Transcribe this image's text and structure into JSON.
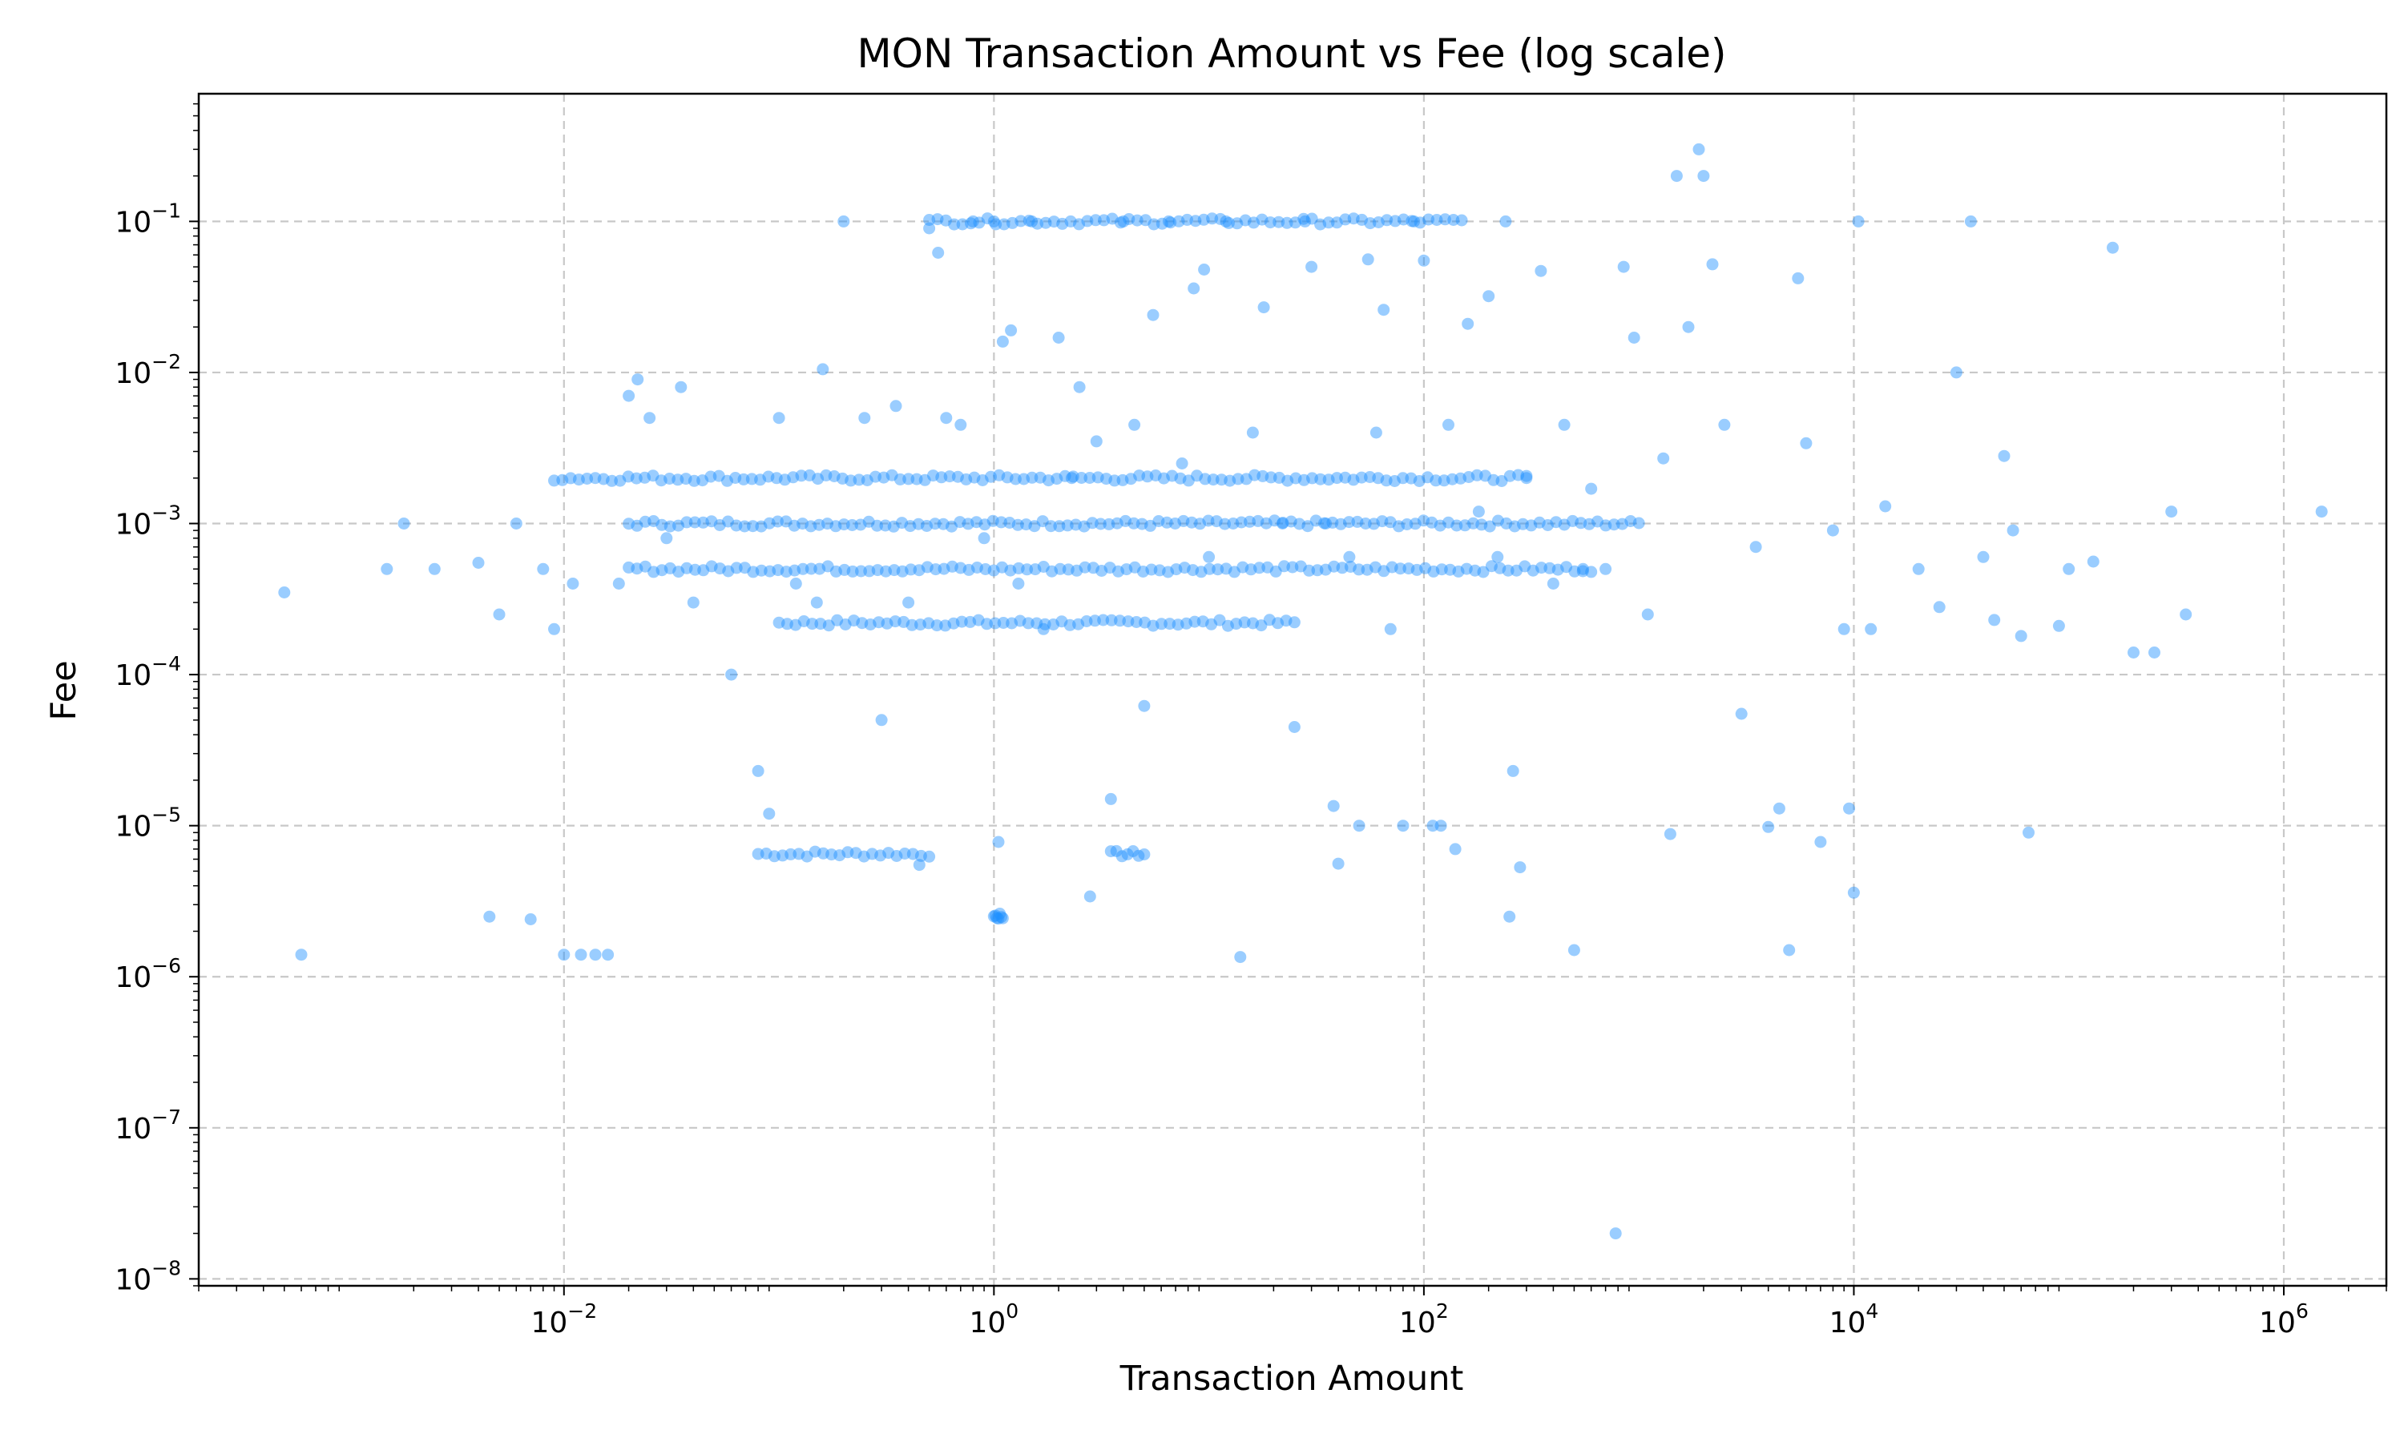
{
  "chart_data": {
    "type": "scatter",
    "title": "MON Transaction Amount vs Fee (log scale)",
    "xlabel": "Transaction Amount",
    "ylabel": "Fee",
    "x_scale": "log",
    "y_scale": "log",
    "xlim": [
      0.0002,
      3000000
    ],
    "ylim": [
      9e-09,
      0.7
    ],
    "grid": true,
    "grid_style": "dashed",
    "legend": "none",
    "colors": {
      "marker": "#1e90ff",
      "grid": "#c8c8c8",
      "axes": "#000000"
    },
    "x_ticks": [
      {
        "base": "10",
        "exp": "−2",
        "value": 0.01
      },
      {
        "base": "10",
        "exp": "0",
        "value": 1
      },
      {
        "base": "10",
        "exp": "2",
        "value": 100
      },
      {
        "base": "10",
        "exp": "4",
        "value": 10000
      },
      {
        "base": "10",
        "exp": "6",
        "value": 1000000
      }
    ],
    "y_ticks": [
      {
        "base": "10",
        "exp": "−8",
        "value": 1e-08
      },
      {
        "base": "10",
        "exp": "−7",
        "value": 1e-07
      },
      {
        "base": "10",
        "exp": "−6",
        "value": 1e-06
      },
      {
        "base": "10",
        "exp": "−5",
        "value": 1e-05
      },
      {
        "base": "10",
        "exp": "−4",
        "value": 0.0001
      },
      {
        "base": "10",
        "exp": "−3",
        "value": 0.001
      },
      {
        "base": "10",
        "exp": "−2",
        "value": 0.01
      },
      {
        "base": "10",
        "exp": "−1",
        "value": 0.1
      }
    ],
    "points": [
      [
        0.0005,
        0.00035
      ],
      [
        0.0006,
        1.4e-06
      ],
      [
        0.0015,
        0.0005
      ],
      [
        0.0018,
        0.001
      ],
      [
        0.0025,
        0.0005
      ],
      [
        0.004,
        0.00055
      ],
      [
        0.0045,
        2.5e-06
      ],
      [
        0.005,
        0.00025
      ],
      [
        0.006,
        0.001
      ],
      [
        0.007,
        2.4e-06
      ],
      [
        0.008,
        0.0005
      ],
      [
        0.009,
        0.0002
      ],
      [
        0.01,
        1.4e-06
      ],
      [
        0.011,
        0.0004
      ],
      [
        0.012,
        1.4e-06
      ],
      [
        0.014,
        1.4e-06
      ],
      [
        0.016,
        1.4e-06
      ],
      [
        0.018,
        0.0004
      ],
      [
        0.02,
        0.007
      ],
      [
        0.022,
        0.009
      ],
      [
        0.025,
        0.005
      ],
      [
        0.03,
        0.0008
      ],
      [
        0.035,
        0.008
      ],
      [
        0.04,
        0.0003
      ],
      [
        0.06,
        0.0001
      ],
      [
        0.08,
        2.3e-05
      ],
      [
        0.09,
        1.2e-05
      ],
      [
        0.1,
        0.005
      ],
      [
        0.12,
        0.0004
      ],
      [
        0.15,
        0.0003
      ],
      [
        0.16,
        0.0105
      ],
      [
        0.2,
        0.1
      ],
      [
        0.25,
        0.005
      ],
      [
        0.3,
        5e-05
      ],
      [
        0.35,
        0.006
      ],
      [
        0.4,
        0.0003
      ],
      [
        0.45,
        5.5e-06
      ],
      [
        0.5,
        0.09
      ],
      [
        0.55,
        0.062
      ],
      [
        0.6,
        0.005
      ],
      [
        0.7,
        0.0045
      ],
      [
        0.8,
        0.1
      ],
      [
        0.9,
        0.0008
      ],
      [
        1.0,
        0.1
      ],
      [
        1.05,
        7.8e-06
      ],
      [
        1.1,
        0.016
      ],
      [
        1.2,
        0.019
      ],
      [
        1.3,
        0.0004
      ],
      [
        1.5,
        0.1
      ],
      [
        1.7,
        0.0002
      ],
      [
        2.0,
        0.017
      ],
      [
        2.3,
        0.002
      ],
      [
        2.5,
        0.008
      ],
      [
        2.8,
        3.4e-06
      ],
      [
        3.0,
        0.0035
      ],
      [
        3.5,
        1.5e-05
      ],
      [
        4.0,
        0.1
      ],
      [
        4.5,
        0.0045
      ],
      [
        5.0,
        6.2e-05
      ],
      [
        5.5,
        0.024
      ],
      [
        6.5,
        0.1
      ],
      [
        7.5,
        0.0025
      ],
      [
        8.5,
        0.036
      ],
      [
        9.5,
        0.048
      ],
      [
        10.0,
        0.0006
      ],
      [
        12.0,
        0.1
      ],
      [
        14.0,
        1.35e-06
      ],
      [
        16.0,
        0.004
      ],
      [
        18.0,
        0.027
      ],
      [
        22.0,
        0.001
      ],
      [
        25.0,
        4.5e-05
      ],
      [
        28.0,
        0.1
      ],
      [
        30.0,
        0.05
      ],
      [
        35.0,
        0.001
      ],
      [
        38.0,
        1.35e-05
      ],
      [
        40.0,
        5.6e-06
      ],
      [
        45.0,
        0.0006
      ],
      [
        50.0,
        1e-05
      ],
      [
        55.0,
        0.056
      ],
      [
        60.0,
        0.004
      ],
      [
        65.0,
        0.026
      ],
      [
        70.0,
        0.0002
      ],
      [
        80.0,
        1e-05
      ],
      [
        90.0,
        0.1
      ],
      [
        100.0,
        0.055
      ],
      [
        110.0,
        1e-05
      ],
      [
        120.0,
        1e-05
      ],
      [
        130.0,
        0.0045
      ],
      [
        140.0,
        7e-06
      ],
      [
        160.0,
        0.021
      ],
      [
        180.0,
        0.0012
      ],
      [
        200.0,
        0.032
      ],
      [
        220.0,
        0.0006
      ],
      [
        240.0,
        0.1
      ],
      [
        250.0,
        2.5e-06
      ],
      [
        260.0,
        2.3e-05
      ],
      [
        280.0,
        5.3e-06
      ],
      [
        300.0,
        0.002
      ],
      [
        350.0,
        0.047
      ],
      [
        400.0,
        0.0004
      ],
      [
        450.0,
        0.0045
      ],
      [
        500.0,
        1.5e-06
      ],
      [
        550.0,
        0.0005
      ],
      [
        600.0,
        0.0017
      ],
      [
        700.0,
        0.0005
      ],
      [
        780.0,
        2e-08
      ],
      [
        850.0,
        0.05
      ],
      [
        950.0,
        0.017
      ],
      [
        1100.0,
        0.00025
      ],
      [
        1300.0,
        0.0027
      ],
      [
        1400.0,
        8.8e-06
      ],
      [
        1500.0,
        0.2
      ],
      [
        1700.0,
        0.02
      ],
      [
        1900.0,
        0.3
      ],
      [
        2000.0,
        0.2
      ],
      [
        2200.0,
        0.052
      ],
      [
        2500.0,
        0.0045
      ],
      [
        3000.0,
        5.5e-05
      ],
      [
        3500.0,
        0.0007
      ],
      [
        4000.0,
        9.8e-06
      ],
      [
        4500.0,
        1.3e-05
      ],
      [
        5000.0,
        1.5e-06
      ],
      [
        5500.0,
        0.042
      ],
      [
        6000.0,
        0.0034
      ],
      [
        7000.0,
        7.8e-06
      ],
      [
        8000.0,
        0.0009
      ],
      [
        9000.0,
        0.0002
      ],
      [
        9500.0,
        1.3e-05
      ],
      [
        10000.0,
        3.6e-06
      ],
      [
        10500.0,
        0.1
      ],
      [
        12000.0,
        0.0002
      ],
      [
        14000.0,
        0.0013
      ],
      [
        20000.0,
        0.0005
      ],
      [
        25000.0,
        0.00028
      ],
      [
        30000.0,
        0.01
      ],
      [
        35000.0,
        0.1
      ],
      [
        40000.0,
        0.0006
      ],
      [
        45000.0,
        0.00023
      ],
      [
        50000.0,
        0.0028
      ],
      [
        55000.0,
        0.0009
      ],
      [
        60000.0,
        0.00018
      ],
      [
        65000.0,
        9e-06
      ],
      [
        90000.0,
        0.00021
      ],
      [
        100000.0,
        0.0005
      ],
      [
        130000.0,
        0.00056
      ],
      [
        160000.0,
        0.067
      ],
      [
        200000.0,
        0.00014
      ],
      [
        250000.0,
        0.00014
      ],
      [
        300000.0,
        0.0012
      ],
      [
        350000.0,
        0.00025
      ],
      [
        1500000.0,
        0.0012
      ]
    ],
    "clusters": [
      {
        "x_range": [
          0.08,
          0.5
        ],
        "fee": 6.5e-06
      },
      {
        "x_range": [
          3.5,
          5.0
        ],
        "fee": 6.5e-06
      },
      {
        "x_range": [
          1.0,
          1.1
        ],
        "fee": 2.5e-06
      },
      {
        "x_range": [
          0.1,
          25.0
        ],
        "fee": 0.00022
      },
      {
        "x_range": [
          0.02,
          1000.0
        ],
        "fee": 0.001
      },
      {
        "x_range": [
          0.009,
          300.0
        ],
        "fee": 0.002
      },
      {
        "x_range": [
          0.02,
          600.0
        ],
        "fee": 0.0005
      },
      {
        "x_range": [
          0.5,
          150.0
        ],
        "fee": 0.1
      }
    ]
  }
}
